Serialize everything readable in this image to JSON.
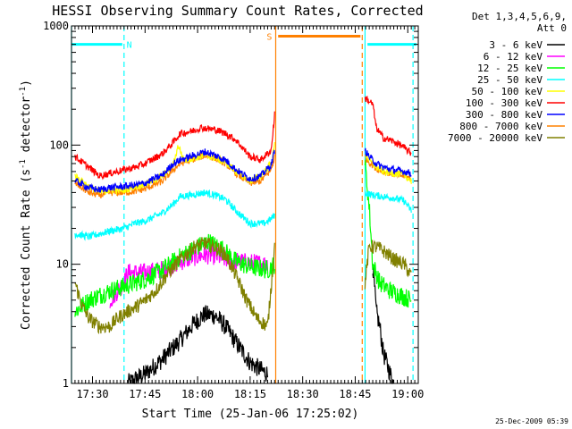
{
  "chart_data": {
    "type": "line",
    "title": "HESSI Observing Summary Count Rates, Corrected",
    "xlabel": "Start Time (25-Jan-06 17:25:02)",
    "ylabel_main": "Corrected Count Rate (s",
    "ylabel_sup1": "-1",
    "ylabel_mid": " detector",
    "ylabel_sup2": "-1",
    "ylabel_end": ")",
    "y_scale": "log",
    "ylim": [
      1,
      1000
    ],
    "y_ticks": [
      {
        "value": 1,
        "label": "1"
      },
      {
        "value": 10,
        "label": "10"
      },
      {
        "value": 100,
        "label": "100"
      },
      {
        "value": 1000,
        "label": "1000"
      }
    ],
    "x_unit": "minutes after 17:25:02",
    "xlim": [
      -1,
      98
    ],
    "x_ticks": [
      {
        "value": 5,
        "label": "17:30"
      },
      {
        "value": 20,
        "label": "17:45"
      },
      {
        "value": 35,
        "label": "18:00"
      },
      {
        "value": 50,
        "label": "18:15"
      },
      {
        "value": 65,
        "label": "18:30"
      },
      {
        "value": 80,
        "label": "18:45"
      },
      {
        "value": 95,
        "label": "19:00"
      }
    ],
    "legend_header": [
      "Det 1,3,4,5,6,9,",
      "Att 0"
    ],
    "legend_position": "right",
    "timestamp": "25-Dec-2009 05:39",
    "flags": [
      {
        "label": "N",
        "color": "#00ffff",
        "segments": [
          [
            -1,
            13.5
          ],
          [
            83.5,
            97.5
          ]
        ],
        "level": 700,
        "label_at": 15.5
      },
      {
        "label": "S",
        "color": "#ff8000",
        "segments": [
          [
            58,
            81.5
          ]
        ],
        "level": 820,
        "label_at": 55.5
      }
    ],
    "vlines": [
      {
        "x": -1,
        "color": "#00ffff",
        "style": "solid"
      },
      {
        "x": 14,
        "color": "#00ffff",
        "style": "dashed"
      },
      {
        "x": 57.3,
        "color": "#ff8000",
        "style": "solid"
      },
      {
        "x": 82,
        "color": "#ff8000",
        "style": "dashed"
      },
      {
        "x": 82.8,
        "color": "#00ffff",
        "style": "solid"
      },
      {
        "x": 96.5,
        "color": "#00ffff",
        "style": "dashed"
      }
    ],
    "series": [
      {
        "name": "3 - 6 keV",
        "color": "#000000",
        "segments": [
          [
            [
              15,
              1
            ],
            [
              20,
              1.2
            ],
            [
              25,
              1.6
            ],
            [
              30,
              2.3
            ],
            [
              34,
              3.2
            ],
            [
              37,
              3.8
            ],
            [
              40,
              3.7
            ],
            [
              43,
              3
            ],
            [
              47,
              2
            ],
            [
              50,
              1.5
            ],
            [
              53,
              1.3
            ],
            [
              55,
              1.2
            ]
          ],
          [
            [
              85,
              10
            ],
            [
              86,
              4
            ],
            [
              87,
              3
            ],
            [
              88,
              1.8
            ],
            [
              90,
              1.2
            ],
            [
              91,
              1
            ]
          ]
        ]
      },
      {
        "name": "6 - 12 keV",
        "color": "#ff00ff",
        "segments": [
          [
            [
              10,
              5
            ],
            [
              14,
              7
            ],
            [
              15,
              8.5
            ],
            [
              20,
              8.5
            ],
            [
              25,
              9
            ],
            [
              30,
              10.5
            ],
            [
              34,
              11.5
            ],
            [
              37,
              12
            ],
            [
              40,
              11.8
            ],
            [
              43,
              11
            ],
            [
              47,
              10.5
            ],
            [
              50,
              10.3
            ],
            [
              55,
              10
            ]
          ]
        ]
      },
      {
        "name": "12 - 25 keV",
        "color": "#00ff00",
        "segments": [
          [
            [
              0,
              4
            ],
            [
              4,
              5
            ],
            [
              10,
              6
            ],
            [
              14,
              6.5
            ],
            [
              20,
              7.5
            ],
            [
              25,
              9
            ],
            [
              30,
              11.5
            ],
            [
              35,
              14
            ],
            [
              38,
              15.5
            ],
            [
              42,
              13.5
            ],
            [
              46,
              10.5
            ],
            [
              50,
              9.5
            ],
            [
              55,
              9
            ],
            [
              57,
              10
            ]
          ],
          [
            [
              82.8,
              70
            ],
            [
              84,
              30
            ],
            [
              85,
              10
            ],
            [
              87,
              7
            ],
            [
              90,
              6
            ],
            [
              93,
              5.5
            ],
            [
              96,
              5
            ]
          ]
        ]
      },
      {
        "name": "25 - 50 keV",
        "color": "#00ffff",
        "segments": [
          [
            [
              0,
              18
            ],
            [
              4,
              17
            ],
            [
              7,
              18
            ],
            [
              10,
              19
            ],
            [
              14,
              20
            ],
            [
              17,
              22
            ],
            [
              20,
              23
            ],
            [
              25,
              27
            ],
            [
              28,
              32
            ],
            [
              30,
              37
            ],
            [
              33,
              38
            ],
            [
              37,
              40
            ],
            [
              40,
              38
            ],
            [
              43,
              35
            ],
            [
              46,
              28
            ],
            [
              50,
              22
            ],
            [
              54,
              22
            ],
            [
              56,
              24
            ],
            [
              57,
              26
            ]
          ],
          [
            [
              82.8,
              40
            ],
            [
              85,
              38
            ],
            [
              88,
              37
            ],
            [
              91,
              36
            ],
            [
              94,
              34
            ],
            [
              96,
              28
            ]
          ]
        ]
      },
      {
        "name": "50 - 100 keV",
        "color": "#ffff00",
        "segments": [
          [
            [
              0,
              55
            ],
            [
              4,
              45
            ],
            [
              7,
              40
            ],
            [
              10,
              42
            ],
            [
              14,
              42
            ],
            [
              17,
              45
            ],
            [
              20,
              47
            ],
            [
              25,
              55
            ],
            [
              28,
              68
            ],
            [
              29.5,
              100
            ],
            [
              31,
              75
            ],
            [
              34,
              78
            ],
            [
              37,
              82
            ],
            [
              40,
              78
            ],
            [
              43,
              72
            ],
            [
              46,
              60
            ],
            [
              50,
              50
            ],
            [
              53,
              55
            ],
            [
              56,
              70
            ],
            [
              57,
              100
            ]
          ],
          [
            [
              82.8,
              85
            ],
            [
              84,
              75
            ],
            [
              86,
              65
            ],
            [
              88,
              60
            ],
            [
              91,
              58
            ],
            [
              94,
              56
            ],
            [
              96,
              50
            ]
          ]
        ]
      },
      {
        "name": "100 - 300 keV",
        "color": "#ff0000",
        "segments": [
          [
            [
              0,
              80
            ],
            [
              4,
              65
            ],
            [
              7,
              55
            ],
            [
              10,
              58
            ],
            [
              14,
              62
            ],
            [
              17,
              65
            ],
            [
              20,
              70
            ],
            [
              25,
              85
            ],
            [
              28,
              105
            ],
            [
              30,
              125
            ],
            [
              33,
              130
            ],
            [
              36,
              140
            ],
            [
              40,
              135
            ],
            [
              43,
              125
            ],
            [
              46,
              110
            ],
            [
              50,
              80
            ],
            [
              53,
              75
            ],
            [
              56,
              90
            ],
            [
              57,
              180
            ]
          ],
          [
            [
              82.8,
              250
            ],
            [
              85,
              220
            ],
            [
              86,
              140
            ],
            [
              88,
              115
            ],
            [
              90,
              110
            ],
            [
              93,
              100
            ],
            [
              96,
              85
            ]
          ]
        ]
      },
      {
        "name": "300 - 800 keV",
        "color": "#0000ff",
        "segments": [
          [
            [
              0,
              50
            ],
            [
              4,
              44
            ],
            [
              7,
              42
            ],
            [
              10,
              44
            ],
            [
              14,
              45
            ],
            [
              17,
              46
            ],
            [
              20,
              48
            ],
            [
              25,
              56
            ],
            [
              28,
              70
            ],
            [
              30,
              75
            ],
            [
              33,
              80
            ],
            [
              37,
              88
            ],
            [
              40,
              82
            ],
            [
              43,
              75
            ],
            [
              46,
              62
            ],
            [
              50,
              52
            ],
            [
              53,
              55
            ],
            [
              56,
              68
            ],
            [
              57,
              90
            ]
          ],
          [
            [
              82.8,
              90
            ],
            [
              84,
              80
            ],
            [
              86,
              70
            ],
            [
              88,
              65
            ],
            [
              91,
              62
            ],
            [
              94,
              60
            ],
            [
              96,
              58
            ]
          ]
        ]
      },
      {
        "name": "800 - 7000 keV",
        "color": "#ff8000",
        "segments": [
          [
            [
              0,
              48
            ],
            [
              4,
              40
            ],
            [
              7,
              38
            ],
            [
              10,
              40
            ],
            [
              14,
              40
            ],
            [
              17,
              41
            ],
            [
              20,
              43
            ],
            [
              25,
              50
            ],
            [
              28,
              62
            ],
            [
              30,
              70
            ],
            [
              33,
              75
            ],
            [
              37,
              82
            ],
            [
              40,
              78
            ],
            [
              43,
              70
            ],
            [
              46,
              58
            ],
            [
              50,
              48
            ],
            [
              53,
              50
            ],
            [
              56,
              62
            ],
            [
              57,
              80
            ]
          ],
          [
            [
              82.8,
              80
            ],
            [
              84,
              72
            ],
            [
              86,
              64
            ],
            [
              88,
              60
            ],
            [
              91,
              57
            ],
            [
              94,
              55
            ],
            [
              96,
              52
            ]
          ]
        ]
      },
      {
        "name": "7000 - 20000 keV",
        "color": "#808000",
        "segments": [
          [
            [
              0,
              7
            ],
            [
              2,
              4.5
            ],
            [
              4,
              3.5
            ],
            [
              7,
              3
            ],
            [
              10,
              3
            ],
            [
              12,
              3.5
            ],
            [
              15,
              4
            ],
            [
              18,
              4.5
            ],
            [
              20,
              5
            ],
            [
              23,
              6
            ],
            [
              26,
              8
            ],
            [
              30,
              11
            ],
            [
              34,
              14
            ],
            [
              37,
              15
            ],
            [
              40,
              14
            ],
            [
              43,
              12
            ],
            [
              46,
              8
            ],
            [
              49,
              5
            ],
            [
              52,
              3.5
            ],
            [
              55,
              3
            ],
            [
              57,
              14
            ]
          ],
          [
            [
              82.8,
              7
            ],
            [
              84,
              14
            ],
            [
              86,
              14
            ],
            [
              88,
              13
            ],
            [
              91,
              11
            ],
            [
              94,
              10
            ],
            [
              96,
              8
            ]
          ]
        ]
      }
    ]
  }
}
